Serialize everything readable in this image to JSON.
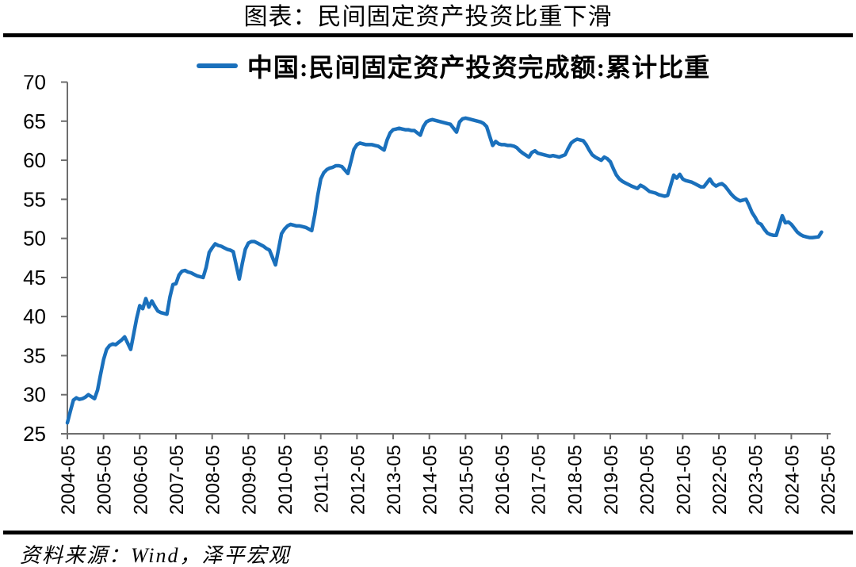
{
  "page": {
    "source": "资料来源：Wind，泽平宏观"
  },
  "colors": {
    "line": "#1A70BC",
    "axis": "#6E6E6E",
    "text": "#000000",
    "divider": "#000000"
  },
  "chart_data": {
    "type": "line",
    "title": "图表：民间固定资产投资比重下滑",
    "ylabel": "",
    "xlabel": "",
    "ylim": [
      25,
      70
    ],
    "yticks": [
      25,
      30,
      35,
      40,
      45,
      50,
      55,
      60,
      65,
      70
    ],
    "xticks": [
      "2004-05",
      "2005-05",
      "2006-05",
      "2007-05",
      "2008-05",
      "2009-05",
      "2010-05",
      "2011-05",
      "2012-05",
      "2013-05",
      "2014-05",
      "2015-05",
      "2016-05",
      "2017-05",
      "2018-05",
      "2019-05",
      "2020-05",
      "2021-05",
      "2022-05",
      "2023-05",
      "2024-05",
      "2025-05"
    ],
    "grid": false,
    "legend_position": "top-center",
    "series": [
      {
        "name": "中国:民间固定资产投资完成额:累计比重",
        "color": "#1A70BC",
        "points": [
          [
            "2004-05",
            26.4
          ],
          [
            "2004-06",
            27.9
          ],
          [
            "2004-07",
            29.3
          ],
          [
            "2004-08",
            29.6
          ],
          [
            "2004-09",
            29.4
          ],
          [
            "2004-10",
            29.5
          ],
          [
            "2004-11",
            29.7
          ],
          [
            "2004-12",
            30.0
          ],
          [
            "2005-02",
            29.5
          ],
          [
            "2005-03",
            30.6
          ],
          [
            "2005-04",
            32.6
          ],
          [
            "2005-05",
            34.5
          ],
          [
            "2005-06",
            35.8
          ],
          [
            "2005-07",
            36.3
          ],
          [
            "2005-08",
            36.5
          ],
          [
            "2005-09",
            36.4
          ],
          [
            "2005-10",
            36.7
          ],
          [
            "2005-11",
            37.0
          ],
          [
            "2005-12",
            37.4
          ],
          [
            "2006-02",
            35.8
          ],
          [
            "2006-03",
            37.8
          ],
          [
            "2006-04",
            39.8
          ],
          [
            "2006-05",
            41.4
          ],
          [
            "2006-06",
            41.0
          ],
          [
            "2006-07",
            42.3
          ],
          [
            "2006-08",
            41.2
          ],
          [
            "2006-09",
            42.0
          ],
          [
            "2006-10",
            41.3
          ],
          [
            "2006-11",
            40.7
          ],
          [
            "2006-12",
            40.5
          ],
          [
            "2007-02",
            40.3
          ],
          [
            "2007-03",
            42.5
          ],
          [
            "2007-04",
            44.1
          ],
          [
            "2007-05",
            44.2
          ],
          [
            "2007-06",
            45.3
          ],
          [
            "2007-07",
            45.8
          ],
          [
            "2007-08",
            45.9
          ],
          [
            "2007-09",
            45.7
          ],
          [
            "2007-10",
            45.6
          ],
          [
            "2007-11",
            45.4
          ],
          [
            "2007-12",
            45.2
          ],
          [
            "2008-02",
            45.0
          ],
          [
            "2008-03",
            46.3
          ],
          [
            "2008-04",
            48.2
          ],
          [
            "2008-05",
            48.8
          ],
          [
            "2008-06",
            49.3
          ],
          [
            "2008-07",
            49.1
          ],
          [
            "2008-08",
            49.0
          ],
          [
            "2008-09",
            48.8
          ],
          [
            "2008-10",
            48.6
          ],
          [
            "2008-11",
            48.5
          ],
          [
            "2008-12",
            48.3
          ],
          [
            "2009-02",
            44.8
          ],
          [
            "2009-03",
            46.8
          ],
          [
            "2009-04",
            48.6
          ],
          [
            "2009-05",
            49.4
          ],
          [
            "2009-06",
            49.6
          ],
          [
            "2009-07",
            49.6
          ],
          [
            "2009-08",
            49.4
          ],
          [
            "2009-09",
            49.2
          ],
          [
            "2009-10",
            49.0
          ],
          [
            "2009-11",
            48.7
          ],
          [
            "2009-12",
            48.5
          ],
          [
            "2010-02",
            46.6
          ],
          [
            "2010-03",
            48.6
          ],
          [
            "2010-04",
            50.6
          ],
          [
            "2010-05",
            51.2
          ],
          [
            "2010-06",
            51.6
          ],
          [
            "2010-07",
            51.8
          ],
          [
            "2010-08",
            51.7
          ],
          [
            "2010-09",
            51.6
          ],
          [
            "2010-10",
            51.6
          ],
          [
            "2010-11",
            51.5
          ],
          [
            "2010-12",
            51.4
          ],
          [
            "2011-02",
            51.0
          ],
          [
            "2011-03",
            53.0
          ],
          [
            "2011-04",
            55.5
          ],
          [
            "2011-05",
            57.6
          ],
          [
            "2011-06",
            58.4
          ],
          [
            "2011-07",
            58.8
          ],
          [
            "2011-08",
            59.0
          ],
          [
            "2011-09",
            59.1
          ],
          [
            "2011-10",
            59.3
          ],
          [
            "2011-11",
            59.3
          ],
          [
            "2011-12",
            59.2
          ],
          [
            "2012-02",
            58.3
          ],
          [
            "2012-03",
            59.8
          ],
          [
            "2012-04",
            61.4
          ],
          [
            "2012-05",
            62.0
          ],
          [
            "2012-06",
            62.2
          ],
          [
            "2012-07",
            62.1
          ],
          [
            "2012-08",
            62.0
          ],
          [
            "2012-09",
            62.0
          ],
          [
            "2012-10",
            62.0
          ],
          [
            "2012-11",
            61.9
          ],
          [
            "2012-12",
            61.8
          ],
          [
            "2013-02",
            61.3
          ],
          [
            "2013-03",
            62.6
          ],
          [
            "2013-04",
            63.5
          ],
          [
            "2013-05",
            63.9
          ],
          [
            "2013-06",
            64.0
          ],
          [
            "2013-07",
            64.1
          ],
          [
            "2013-08",
            64.0
          ],
          [
            "2013-09",
            63.9
          ],
          [
            "2013-10",
            63.9
          ],
          [
            "2013-11",
            63.8
          ],
          [
            "2013-12",
            63.8
          ],
          [
            "2014-02",
            63.2
          ],
          [
            "2014-03",
            64.3
          ],
          [
            "2014-04",
            64.9
          ],
          [
            "2014-05",
            65.1
          ],
          [
            "2014-06",
            65.2
          ],
          [
            "2014-07",
            65.1
          ],
          [
            "2014-08",
            65.0
          ],
          [
            "2014-09",
            64.9
          ],
          [
            "2014-10",
            64.8
          ],
          [
            "2014-11",
            64.7
          ],
          [
            "2014-12",
            64.6
          ],
          [
            "2015-02",
            63.6
          ],
          [
            "2015-03",
            64.9
          ],
          [
            "2015-04",
            65.3
          ],
          [
            "2015-05",
            65.4
          ],
          [
            "2015-06",
            65.3
          ],
          [
            "2015-07",
            65.2
          ],
          [
            "2015-08",
            65.1
          ],
          [
            "2015-09",
            65.0
          ],
          [
            "2015-10",
            64.9
          ],
          [
            "2015-11",
            64.7
          ],
          [
            "2015-12",
            64.3
          ],
          [
            "2016-02",
            61.9
          ],
          [
            "2016-03",
            62.4
          ],
          [
            "2016-04",
            62.1
          ],
          [
            "2016-05",
            62.0
          ],
          [
            "2016-06",
            62.0
          ],
          [
            "2016-07",
            61.9
          ],
          [
            "2016-08",
            61.9
          ],
          [
            "2016-09",
            61.8
          ],
          [
            "2016-10",
            61.6
          ],
          [
            "2016-11",
            61.2
          ],
          [
            "2016-12",
            60.9
          ],
          [
            "2017-02",
            60.4
          ],
          [
            "2017-03",
            61.0
          ],
          [
            "2017-04",
            61.2
          ],
          [
            "2017-05",
            60.9
          ],
          [
            "2017-06",
            60.8
          ],
          [
            "2017-07",
            60.7
          ],
          [
            "2017-08",
            60.6
          ],
          [
            "2017-09",
            60.5
          ],
          [
            "2017-10",
            60.6
          ],
          [
            "2017-11",
            60.5
          ],
          [
            "2017-12",
            60.4
          ],
          [
            "2018-02",
            60.7
          ],
          [
            "2018-03",
            61.5
          ],
          [
            "2018-04",
            62.2
          ],
          [
            "2018-05",
            62.5
          ],
          [
            "2018-06",
            62.7
          ],
          [
            "2018-07",
            62.6
          ],
          [
            "2018-08",
            62.5
          ],
          [
            "2018-09",
            62.0
          ],
          [
            "2018-10",
            61.3
          ],
          [
            "2018-11",
            60.7
          ],
          [
            "2018-12",
            60.4
          ],
          [
            "2019-02",
            60.0
          ],
          [
            "2019-03",
            60.4
          ],
          [
            "2019-04",
            60.2
          ],
          [
            "2019-05",
            59.8
          ],
          [
            "2019-06",
            58.9
          ],
          [
            "2019-07",
            58.1
          ],
          [
            "2019-08",
            57.6
          ],
          [
            "2019-09",
            57.3
          ],
          [
            "2019-10",
            57.1
          ],
          [
            "2019-11",
            56.9
          ],
          [
            "2019-12",
            56.7
          ],
          [
            "2020-02",
            56.4
          ],
          [
            "2020-03",
            56.8
          ],
          [
            "2020-04",
            56.6
          ],
          [
            "2020-05",
            56.3
          ],
          [
            "2020-06",
            56.0
          ],
          [
            "2020-07",
            55.9
          ],
          [
            "2020-08",
            55.8
          ],
          [
            "2020-09",
            55.6
          ],
          [
            "2020-10",
            55.5
          ],
          [
            "2020-11",
            55.4
          ],
          [
            "2020-12",
            55.5
          ],
          [
            "2021-02",
            58.1
          ],
          [
            "2021-03",
            57.7
          ],
          [
            "2021-04",
            58.2
          ],
          [
            "2021-05",
            57.6
          ],
          [
            "2021-06",
            57.4
          ],
          [
            "2021-07",
            57.3
          ],
          [
            "2021-08",
            57.2
          ],
          [
            "2021-09",
            57.0
          ],
          [
            "2021-10",
            56.8
          ],
          [
            "2021-11",
            56.6
          ],
          [
            "2021-12",
            56.6
          ],
          [
            "2022-02",
            57.6
          ],
          [
            "2022-03",
            57.0
          ],
          [
            "2022-04",
            56.7
          ],
          [
            "2022-05",
            56.9
          ],
          [
            "2022-06",
            57.0
          ],
          [
            "2022-07",
            56.7
          ],
          [
            "2022-08",
            56.2
          ],
          [
            "2022-09",
            55.7
          ],
          [
            "2022-10",
            55.3
          ],
          [
            "2022-11",
            55.0
          ],
          [
            "2022-12",
            54.8
          ],
          [
            "2023-02",
            55.0
          ],
          [
            "2023-03",
            54.2
          ],
          [
            "2023-04",
            53.3
          ],
          [
            "2023-05",
            52.7
          ],
          [
            "2023-06",
            52.0
          ],
          [
            "2023-07",
            51.8
          ],
          [
            "2023-08",
            51.2
          ],
          [
            "2023-09",
            50.7
          ],
          [
            "2023-10",
            50.5
          ],
          [
            "2023-11",
            50.4
          ],
          [
            "2023-12",
            50.4
          ],
          [
            "2024-02",
            52.9
          ],
          [
            "2024-03",
            52.0
          ],
          [
            "2024-04",
            52.1
          ],
          [
            "2024-05",
            51.8
          ],
          [
            "2024-06",
            51.3
          ],
          [
            "2024-07",
            50.8
          ],
          [
            "2024-08",
            50.5
          ],
          [
            "2024-09",
            50.3
          ],
          [
            "2024-10",
            50.2
          ],
          [
            "2024-11",
            50.1
          ],
          [
            "2024-12",
            50.1
          ],
          [
            "2025-02",
            50.2
          ],
          [
            "2025-03",
            50.8
          ]
        ]
      }
    ]
  }
}
